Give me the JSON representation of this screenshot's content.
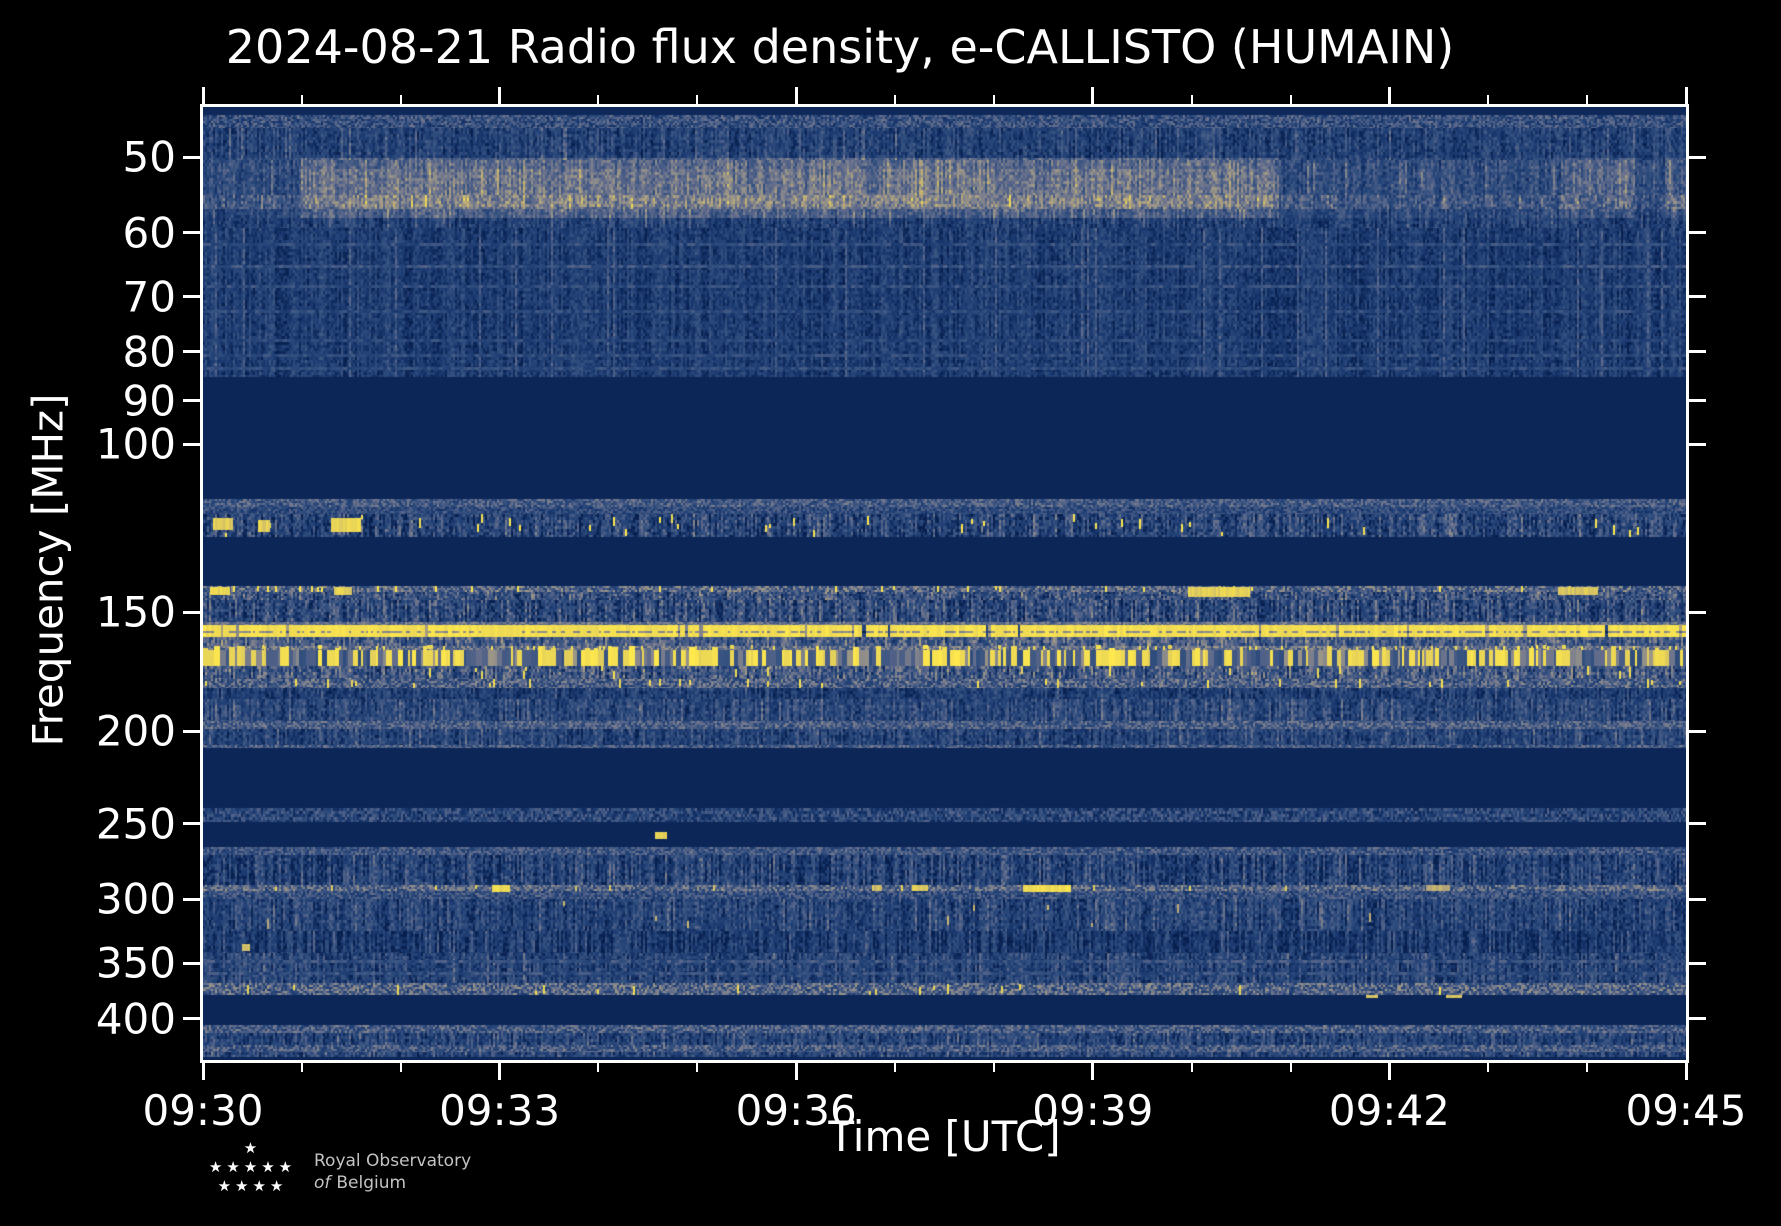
{
  "title": "2024-08-21 Radio flux density, e-CALLISTO (HUMAIN)",
  "xlabel": "Time [UTC]",
  "ylabel": "Frequency [MHz]",
  "logo": {
    "line1": "Royal Observatory",
    "line2_word1": "of",
    "line2_word2": "Belgium",
    "star_rows": [
      "★",
      "★★★★★",
      "★★★★"
    ]
  },
  "chart_data": {
    "type": "heatmap",
    "title": "2024-08-21 Radio flux density, e-CALLISTO (HUMAIN)",
    "xlabel": "Time [UTC]",
    "ylabel": "Frequency [MHz]",
    "x_tick_labels": [
      "09:30",
      "09:33",
      "09:36",
      "09:39",
      "09:42",
      "09:45"
    ],
    "x_minutes_total": 15,
    "x_major_every_min": 3,
    "y_tick_values": [
      50,
      60,
      70,
      80,
      90,
      100,
      150,
      200,
      250,
      300,
      350,
      400
    ],
    "y_scale": "log",
    "f_min": 44.3,
    "f_max": 442,
    "grid": false,
    "legend": "none",
    "colormap_stops": [
      [
        0.0,
        "#071f4e"
      ],
      [
        0.15,
        "#1b3a71"
      ],
      [
        0.3,
        "#33507f"
      ],
      [
        0.45,
        "#5c688b"
      ],
      [
        0.6,
        "#8d8c8c"
      ],
      [
        0.75,
        "#bcab77"
      ],
      [
        0.88,
        "#e8d456"
      ],
      [
        1.0,
        "#ffe94d"
      ]
    ],
    "bands": [
      {
        "f": [
          44.3,
          45.2
        ],
        "type": "flat",
        "base": 0.05
      },
      {
        "f": [
          45.2,
          46.6
        ],
        "type": "speckle",
        "base": 0.3,
        "amp": 0.22,
        "cell": 2
      },
      {
        "f": [
          46.6,
          50.4
        ],
        "type": "columns",
        "base": 0.2,
        "amp": 0.13,
        "colAmp": 0.1,
        "cell": 3
      },
      {
        "f": [
          50.4,
          54.8
        ],
        "type": "columns",
        "base": 0.23,
        "amp": 0.13,
        "colAmp": 0.1,
        "cell": 3
      },
      {
        "f": [
          54.8,
          56.6
        ],
        "type": "columns",
        "base": 0.3,
        "amp": 0.16,
        "colAmp": 0.1,
        "cell": 3
      },
      {
        "f": [
          56.6,
          59.3
        ],
        "type": "columns",
        "base": 0.19,
        "amp": 0.12,
        "colAmp": 0.1,
        "cell": 3
      },
      {
        "f": [
          59.3,
          85.0
        ],
        "type": "columns",
        "base": 0.17,
        "amp": 0.11,
        "colAmp": 0.09,
        "cell": 3,
        "hlines": [
          {
            "f": 61.5,
            "base": 0.26,
            "amp": 0.12
          },
          {
            "f": 64.8,
            "base": 0.3,
            "amp": 0.12
          },
          {
            "f": 68.0,
            "base": 0.27,
            "amp": 0.12
          },
          {
            "f": 72.3,
            "base": 0.25,
            "amp": 0.12
          },
          {
            "f": 77.5,
            "base": 0.24,
            "amp": 0.1
          },
          {
            "f": 80.5,
            "base": 0.26,
            "amp": 0.1
          },
          {
            "f": 83.0,
            "base": 0.27,
            "amp": 0.1
          }
        ]
      },
      {
        "f": [
          85.0,
          114.2
        ],
        "type": "flat",
        "base": 0.04
      },
      {
        "f": [
          114.2,
          116.2
        ],
        "type": "speckle",
        "base": 0.36,
        "amp": 0.2,
        "cell": 2
      },
      {
        "f": [
          116.2,
          118.4
        ],
        "type": "speckle",
        "base": 0.27,
        "amp": 0.18,
        "cell": 2
      },
      {
        "f": [
          118.4,
          125.2
        ],
        "type": "columns",
        "base": 0.22,
        "amp": 0.18,
        "colAmp": 0.14,
        "cell": 3,
        "dots": {
          "p": 0.05,
          "v": 0.95,
          "leftBias": true
        }
      },
      {
        "f": [
          125.2,
          140.9
        ],
        "type": "flat",
        "base": 0.04
      },
      {
        "f": [
          140.9,
          143.0
        ],
        "type": "speckle",
        "base": 0.42,
        "amp": 0.26,
        "cell": 2,
        "dots": {
          "p": 0.04,
          "v": 0.95,
          "leftBias": true
        }
      },
      {
        "f": [
          143.0,
          145.5
        ],
        "type": "columns",
        "base": 0.3,
        "amp": 0.2,
        "colAmp": 0.15,
        "cell": 2
      },
      {
        "f": [
          145.5,
          153.5
        ],
        "type": "columns",
        "base": 0.26,
        "amp": 0.18,
        "colAmp": 0.16,
        "cell": 3,
        "darkp": 0.07
      },
      {
        "f": [
          153.5,
          154.7
        ],
        "type": "speckle",
        "base": 0.48,
        "amp": 0.15,
        "cell": 2
      },
      {
        "f": [
          154.7,
          159.1
        ],
        "type": "yellow_solid",
        "base": 0.94,
        "amp": 0.05
      },
      {
        "f": [
          159.1,
          162.6
        ],
        "type": "columns",
        "base": 0.36,
        "amp": 0.18,
        "colAmp": 0.14,
        "cell": 3
      },
      {
        "f": [
          162.6,
          164.1
        ],
        "type": "speckle",
        "base": 0.48,
        "amp": 0.2,
        "cell": 2,
        "dots": {
          "p": 0.06,
          "v": 0.92
        }
      },
      {
        "f": [
          164.1,
          170.8
        ],
        "type": "yellow_stripes"
      },
      {
        "f": [
          170.8,
          176.1
        ],
        "type": "columns",
        "base": 0.34,
        "amp": 0.2,
        "colAmp": 0.16,
        "cell": 3,
        "dots": {
          "p": 0.02,
          "v": 0.9
        }
      },
      {
        "f": [
          176.1,
          180.0
        ],
        "type": "speckle",
        "base": 0.38,
        "amp": 0.24,
        "cell": 2,
        "dots": {
          "p": 0.05,
          "v": 0.92
        }
      },
      {
        "f": [
          180.0,
          184.8
        ],
        "type": "columns",
        "base": 0.17,
        "amp": 0.12,
        "colAmp": 0.1,
        "cell": 3
      },
      {
        "f": [
          184.8,
          194.8
        ],
        "type": "columns",
        "base": 0.24,
        "amp": 0.14,
        "colAmp": 0.12,
        "cell": 3
      },
      {
        "f": [
          194.8,
          198.7
        ],
        "type": "speckle",
        "base": 0.38,
        "amp": 0.2,
        "cell": 2
      },
      {
        "f": [
          198.7,
          206.4
        ],
        "type": "columns",
        "base": 0.21,
        "amp": 0.13,
        "colAmp": 0.11,
        "cell": 3
      },
      {
        "f": [
          206.4,
          208.0
        ],
        "type": "speckle",
        "base": 0.36,
        "amp": 0.2,
        "cell": 2
      },
      {
        "f": [
          208.0,
          240.8
        ],
        "type": "flat",
        "base": 0.04
      },
      {
        "f": [
          240.8,
          248.6
        ],
        "type": "speckle",
        "base": 0.24,
        "amp": 0.2,
        "cell": 3
      },
      {
        "f": [
          248.6,
          264.1
        ],
        "type": "flat",
        "base": 0.04
      },
      {
        "f": [
          264.1,
          269.4
        ],
        "type": "speckle",
        "base": 0.33,
        "amp": 0.2,
        "cell": 2
      },
      {
        "f": [
          269.4,
          289.5
        ],
        "type": "columns",
        "base": 0.21,
        "amp": 0.15,
        "colAmp": 0.15,
        "cell": 3,
        "darkp": 0.06
      },
      {
        "f": [
          289.5,
          294.0
        ],
        "type": "speckle",
        "base": 0.42,
        "amp": 0.24,
        "cell": 2,
        "dots": {
          "p": 0.02,
          "v": 0.85
        }
      },
      {
        "f": [
          294.0,
          299.5
        ],
        "type": "speckle",
        "base": 0.3,
        "amp": 0.2,
        "cell": 2
      },
      {
        "f": [
          299.5,
          323.4
        ],
        "type": "columns",
        "base": 0.21,
        "amp": 0.14,
        "colAmp": 0.12,
        "cell": 3,
        "dots": {
          "p": 0.008,
          "v": 0.75
        }
      },
      {
        "f": [
          323.4,
          341.8
        ],
        "type": "columns",
        "base": 0.16,
        "amp": 0.12,
        "colAmp": 0.12,
        "cell": 3,
        "darkp": 0.1
      },
      {
        "f": [
          341.8,
          367.3
        ],
        "type": "columns",
        "base": 0.21,
        "amp": 0.14,
        "colAmp": 0.12,
        "cell": 3,
        "hlines": [
          {
            "f": 347,
            "base": 0.3,
            "amp": 0.14
          },
          {
            "f": 357,
            "base": 0.28,
            "amp": 0.14
          }
        ]
      },
      {
        "f": [
          367.3,
          378.2
        ],
        "type": "speckle",
        "base": 0.4,
        "amp": 0.26,
        "cell": 2,
        "dots": {
          "p": 0.02,
          "v": 0.9
        }
      },
      {
        "f": [
          378.2,
          406.3
        ],
        "type": "flat",
        "base": 0.04
      },
      {
        "f": [
          406.3,
          414.2
        ],
        "type": "speckle",
        "base": 0.36,
        "amp": 0.22,
        "cell": 2
      },
      {
        "f": [
          414.2,
          426.2
        ],
        "type": "columns",
        "base": 0.21,
        "amp": 0.14,
        "colAmp": 0.12,
        "cell": 3
      },
      {
        "f": [
          426.2,
          433.3
        ],
        "type": "speckle",
        "base": 0.36,
        "amp": 0.22,
        "cell": 2
      },
      {
        "f": [
          433.3,
          439.3
        ],
        "type": "columns",
        "base": 0.23,
        "amp": 0.15,
        "colAmp": 0.12,
        "cell": 3
      }
    ],
    "overlays": [
      {
        "t": [
          0.0,
          0.065
        ],
        "f": [
          50.0,
          58.0
        ],
        "add": 0.04
      },
      {
        "t": [
          0.065,
          0.725
        ],
        "f": [
          50.0,
          58.0
        ],
        "add": 0.2
      },
      {
        "t": [
          0.065,
          0.725
        ],
        "f": [
          51.5,
          56.5
        ],
        "add": 0.06
      },
      {
        "t": [
          0.725,
          0.915
        ],
        "f": [
          50.0,
          58.0
        ],
        "add": 0.05
      },
      {
        "t": [
          0.915,
          0.965
        ],
        "f": [
          50.0,
          58.0
        ],
        "add": 0.15
      },
      {
        "t": [
          0.985,
          1.0
        ],
        "f": [
          50.0,
          58.0
        ],
        "add": 0.13
      }
    ],
    "segments": [
      {
        "t": [
          0.553,
          0.585
        ],
        "f": [
          289.5,
          294.5
        ],
        "v": 0.98
      },
      {
        "t": [
          0.451,
          0.457
        ],
        "f": [
          290.0,
          294.0
        ],
        "v": 0.85
      },
      {
        "t": [
          0.478,
          0.489
        ],
        "f": [
          290.0,
          294.0
        ],
        "v": 0.9
      },
      {
        "t": [
          0.195,
          0.207
        ],
        "f": [
          290.0,
          294.5
        ],
        "v": 0.95
      },
      {
        "t": [
          0.825,
          0.84
        ],
        "f": [
          290.0,
          294.0
        ],
        "v": 0.8
      },
      {
        "t": [
          0.664,
          0.705
        ],
        "f": [
          141.0,
          144.5
        ],
        "v": 0.92
      },
      {
        "t": [
          0.914,
          0.94
        ],
        "f": [
          141.0,
          144.0
        ],
        "v": 0.88
      },
      {
        "t": [
          0.784,
          0.792
        ],
        "f": [
          378.0,
          381.0
        ],
        "v": 0.9
      },
      {
        "t": [
          0.838,
          0.848
        ],
        "f": [
          378.0,
          381.0
        ],
        "v": 0.88
      },
      {
        "t": [
          0.305,
          0.312
        ],
        "f": [
          255.0,
          259.0
        ],
        "v": 0.92
      },
      {
        "t": [
          0.026,
          0.031
        ],
        "f": [
          334.0,
          340.0
        ],
        "v": 0.9
      },
      {
        "t": [
          0.007,
          0.02
        ],
        "f": [
          119.5,
          123.0
        ],
        "v": 0.92
      },
      {
        "t": [
          0.037,
          0.045
        ],
        "f": [
          120.0,
          123.5
        ],
        "v": 0.92
      },
      {
        "t": [
          0.086,
          0.106
        ],
        "f": [
          119.5,
          123.5
        ],
        "v": 0.95
      },
      {
        "t": [
          0.005,
          0.018
        ],
        "f": [
          141.0,
          144.0
        ],
        "v": 0.95
      },
      {
        "t": [
          0.088,
          0.1
        ],
        "f": [
          141.0,
          144.0
        ],
        "v": 0.92
      }
    ]
  }
}
